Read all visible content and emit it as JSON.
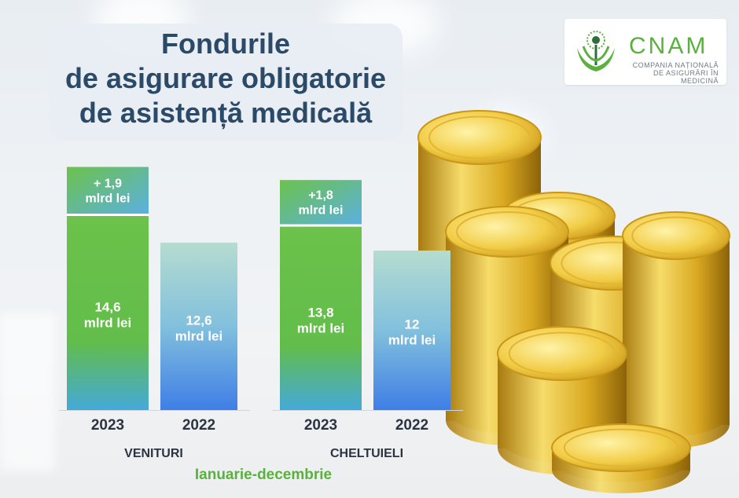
{
  "title_lines": [
    "Fondurile",
    "de asigurare obligatorie",
    "de asistență medicală"
  ],
  "logo": {
    "word": "CNAM",
    "subtitle_line1": "COMPANIA NAȚIONALĂ",
    "subtitle_line2": "DE ASIGURĂRI ÎN MEDICINĂ",
    "colors": {
      "green": "#5bb13e"
    }
  },
  "period": "Ianuarie-decembrie",
  "colors": {
    "bar_2023_top": "#6cc24a",
    "bar_2023_bottom": "#45a9d9",
    "bar_2022_top": "#b5dcd0",
    "bar_2022_bottom": "#3f7ee6",
    "increase_top": "#6cc24a",
    "increase_bottom": "#5bb0e0",
    "title": "#2b4a68",
    "period": "#5bb13e"
  },
  "chart_data": {
    "type": "bar",
    "groups": [
      {
        "name": "VENITURI",
        "bars": [
          {
            "year": "2023",
            "value": 14.6,
            "label_value": "14,6",
            "label_unit": "mlrd lei",
            "increase": 1.9,
            "increase_value": "+ 1,9",
            "increase_unit": "mlrd lei"
          },
          {
            "year": "2022",
            "value": 12.6,
            "label_value": "12,6",
            "label_unit": "mlrd lei"
          }
        ]
      },
      {
        "name": "CHELTUIELI",
        "bars": [
          {
            "year": "2023",
            "value": 13.8,
            "label_value": "13,8",
            "label_unit": "mlrd lei",
            "increase": 1.8,
            "increase_value": "+1,8",
            "increase_unit": "mlrd lei"
          },
          {
            "year": "2022",
            "value": 12,
            "label_value": "12",
            "label_unit": "mlrd lei"
          }
        ]
      }
    ],
    "unit": "mlrd lei"
  }
}
